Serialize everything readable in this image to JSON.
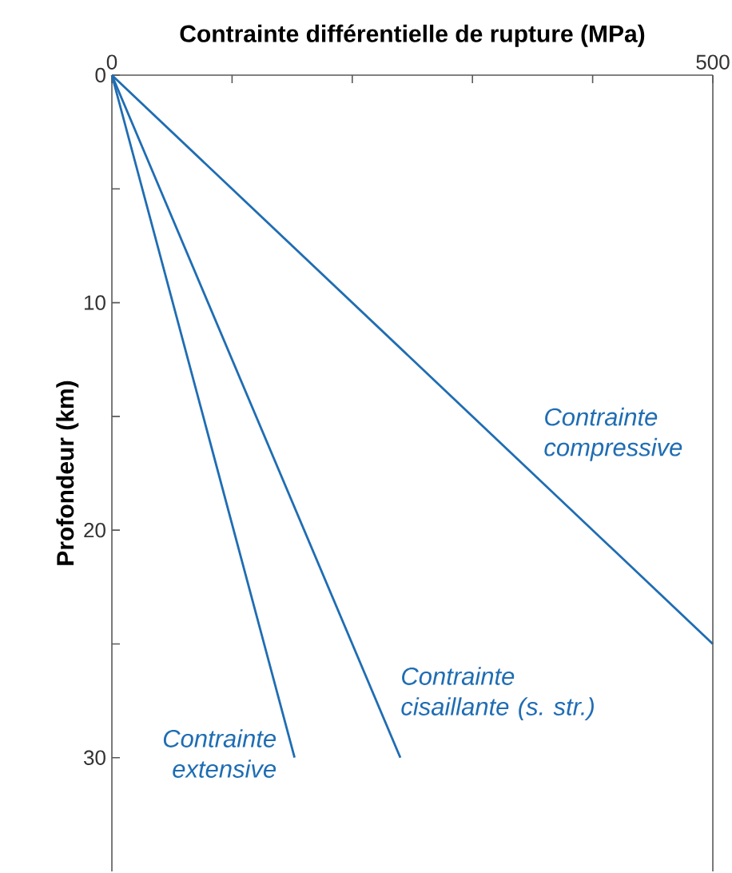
{
  "chart_data": {
    "type": "line",
    "xlabel": "Contrainte différentielle de rupture (MPa)",
    "ylabel": "Profondeur (km)",
    "xlim": [
      0,
      500
    ],
    "xticks": [
      0,
      {
        "value": 100,
        "label": null
      },
      {
        "value": 200,
        "label": null
      },
      {
        "value": 300,
        "label": null
      },
      {
        "value": 400,
        "label": null
      },
      500
    ],
    "ylim": [
      35,
      0
    ],
    "yticks": [
      0,
      {
        "value": 5,
        "label": null
      },
      10,
      {
        "value": 15,
        "label": null
      },
      20,
      {
        "value": 25,
        "label": null
      },
      30
    ],
    "series": [
      {
        "name": "Contrainte compressive",
        "color": "#1f6db3",
        "x": [
          0,
          500
        ],
        "values": [
          0,
          25
        ]
      },
      {
        "name": "Contrainte cisaillante (s. str.)",
        "color": "#1f6db3",
        "x": [
          0,
          240
        ],
        "values": [
          0,
          30
        ]
      },
      {
        "name": "Contrainte extensive",
        "color": "#1f6db3",
        "x": [
          0,
          152
        ],
        "values": [
          0,
          30
        ]
      }
    ],
    "grid": false,
    "legend": false
  }
}
